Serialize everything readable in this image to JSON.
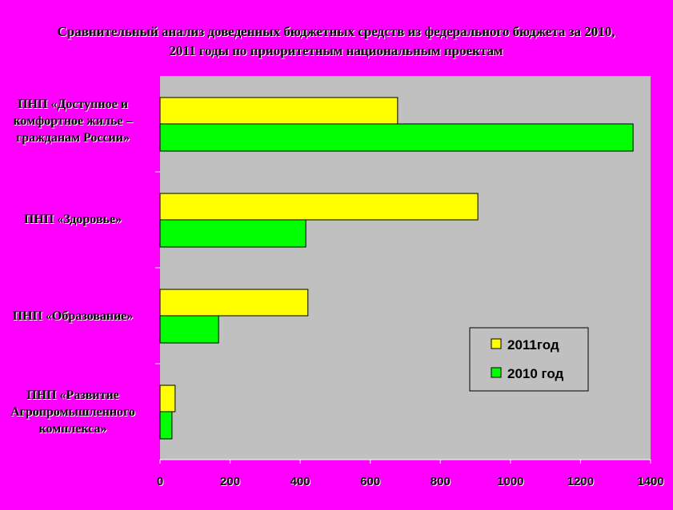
{
  "chart_data": {
    "type": "bar",
    "orientation": "horizontal",
    "title": "Сравнительный анализ доведенных бюджетных средств из федерального бюджета за 2010, 2011 годы по приоритетным национальным проектам",
    "categories": [
      "ПНП «Доступное и комфортное жилье – гражданам России»",
      "ПНП «Здоровье»",
      "ПНП «Образование»",
      "ПНП «Развитие Агропромышленного комплекса»"
    ],
    "series": [
      {
        "name": "2011год",
        "color": "#ffff00",
        "values": [
          678,
          907,
          422,
          43
        ]
      },
      {
        "name": "2010 год",
        "color": "#00ff00",
        "values": [
          1350,
          416,
          167,
          34
        ]
      }
    ],
    "xlim": [
      0,
      1400
    ],
    "xticks": [
      "0",
      "200",
      "400",
      "600",
      "800",
      "1000",
      "1200",
      "1400"
    ],
    "xlabel": "",
    "ylabel": "",
    "grid": false,
    "legend": "bottom-right",
    "plot_background": "#c0c0c0",
    "page_background": "#ff00ff"
  }
}
